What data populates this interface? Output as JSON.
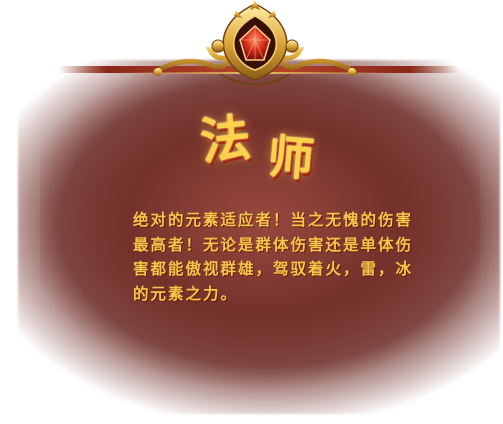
{
  "card": {
    "title_char_1": "法",
    "title_char_2": "师",
    "description": "绝对的元素适应者！当之无愧的伤害最高者！无论是群体伤害还是单体伤害都能傲视群雄，驾驭着火，雷，冰的元素之力。"
  },
  "colors": {
    "panel_bg": "#7e3530",
    "title_gold": "#ffd04a",
    "text_gold": "#f6c64a",
    "crest_red": "#c8281a"
  },
  "icons": {
    "crest": "ornate-gold-crest-icon"
  }
}
